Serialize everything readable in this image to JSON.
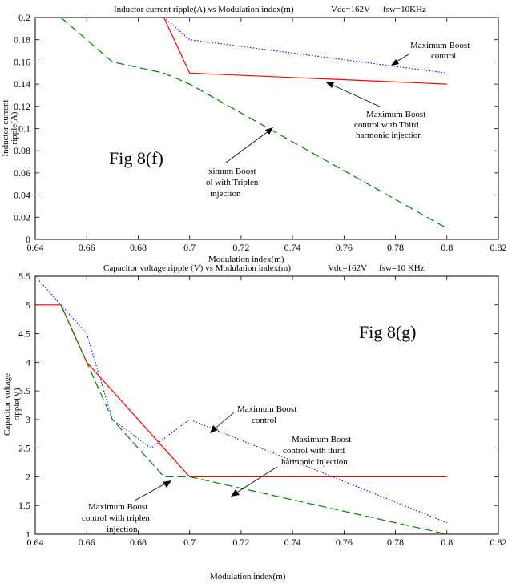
{
  "chart_data": [
    {
      "type": "line",
      "title": "Inductor current ripple(A) vs Modulation index(m)",
      "title_extra": "Vₑ₂=162V   fsw=10KHz",
      "title_vdc": "Vdc=162V",
      "title_fsw": "fsw=10KHz",
      "xlabel": "Modulation index(m)",
      "ylabel_line1": "Inductor current",
      "ylabel_line2": "ripple(A)",
      "xlim": [
        0.64,
        0.82
      ],
      "ylim": [
        0,
        0.2
      ],
      "xticks": [
        "0.64",
        "0.66",
        "0.68",
        "0.7",
        "0.72",
        "0.74",
        "0.76",
        "0.78",
        "0.8",
        "0.82"
      ],
      "yticks": [
        "0",
        "0.02",
        "0.04",
        "0.06",
        "0.08",
        "0.1",
        "0.12",
        "0.14",
        "0.16",
        "0.18",
        "0.2"
      ],
      "grid": false,
      "fig_label": "Fig 8(f)",
      "series": [
        {
          "key": "max_boost",
          "color": "#0000ff",
          "style": "dotted",
          "x": [
            0.69,
            0.7,
            0.8
          ],
          "y": [
            0.2,
            0.18,
            0.15
          ]
        },
        {
          "key": "third_harmonic",
          "color": "#ff0000",
          "style": "solid",
          "x": [
            0.69,
            0.7,
            0.8
          ],
          "y": [
            0.2,
            0.15,
            0.14
          ]
        },
        {
          "key": "triplen",
          "color": "#008000",
          "style": "dashed",
          "x": [
            0.65,
            0.67,
            0.69,
            0.7,
            0.8
          ],
          "y": [
            0.2,
            0.16,
            0.15,
            0.14,
            0.01
          ]
        }
      ],
      "annotations": [
        {
          "lines": [
            "Maximum Boost",
            "control"
          ]
        },
        {
          "lines": [
            "Maximum Boost",
            "control with Third",
            "harmonic injection"
          ]
        },
        {
          "lines": [
            "ximum Boost",
            "ol with Triplen",
            "injection"
          ]
        }
      ]
    },
    {
      "type": "line",
      "title": "Capacitor voltage ripple (V) vs Modulation index(m)",
      "title_vdc": "Vdc=162V",
      "title_fsw": "fsw=10 KHz",
      "xlabel": "Modulation index(m)",
      "ylabel_line1": "Capacitor voltage",
      "ylabel_line2": "ripple(V)",
      "xlim": [
        0.64,
        0.82
      ],
      "ylim": [
        1,
        5.5
      ],
      "xticks": [
        "0.64",
        "0.66",
        "0.68",
        "0.7",
        "0.72",
        "0.74",
        "0.76",
        "0.78",
        "0.8",
        "0.82"
      ],
      "yticks": [
        "1",
        "1.5",
        "2",
        "2.5",
        "3",
        "3.5",
        "4",
        "4.5",
        "5",
        "5.5"
      ],
      "grid": false,
      "fig_label": "Fig 8(g)",
      "series": [
        {
          "key": "max_boost",
          "color": "#0000ff",
          "style": "dotted",
          "x": [
            0.64,
            0.66,
            0.67,
            0.685,
            0.7,
            0.8
          ],
          "y": [
            5.5,
            4.5,
            3.0,
            2.5,
            3.0,
            1.2
          ]
        },
        {
          "key": "third_harmonic",
          "color": "#ff0000",
          "style": "solid",
          "x": [
            0.64,
            0.65,
            0.66,
            0.69,
            0.7,
            0.8
          ],
          "y": [
            5.0,
            5.0,
            4.0,
            2.5,
            2.0,
            2.0
          ]
        },
        {
          "key": "triplen",
          "color": "#008000",
          "style": "dashed",
          "x": [
            0.65,
            0.66,
            0.67,
            0.69,
            0.7,
            0.8
          ],
          "y": [
            5.0,
            4.0,
            3.0,
            2.0,
            2.0,
            1.0
          ]
        }
      ],
      "annotations": [
        {
          "lines": [
            "Maximum Boost",
            "control"
          ]
        },
        {
          "lines": [
            "Maximum Boost",
            "control with third",
            "harmonic injection"
          ]
        },
        {
          "lines": [
            "Maximum Boost",
            "control with triplen",
            "injection"
          ]
        }
      ]
    }
  ]
}
